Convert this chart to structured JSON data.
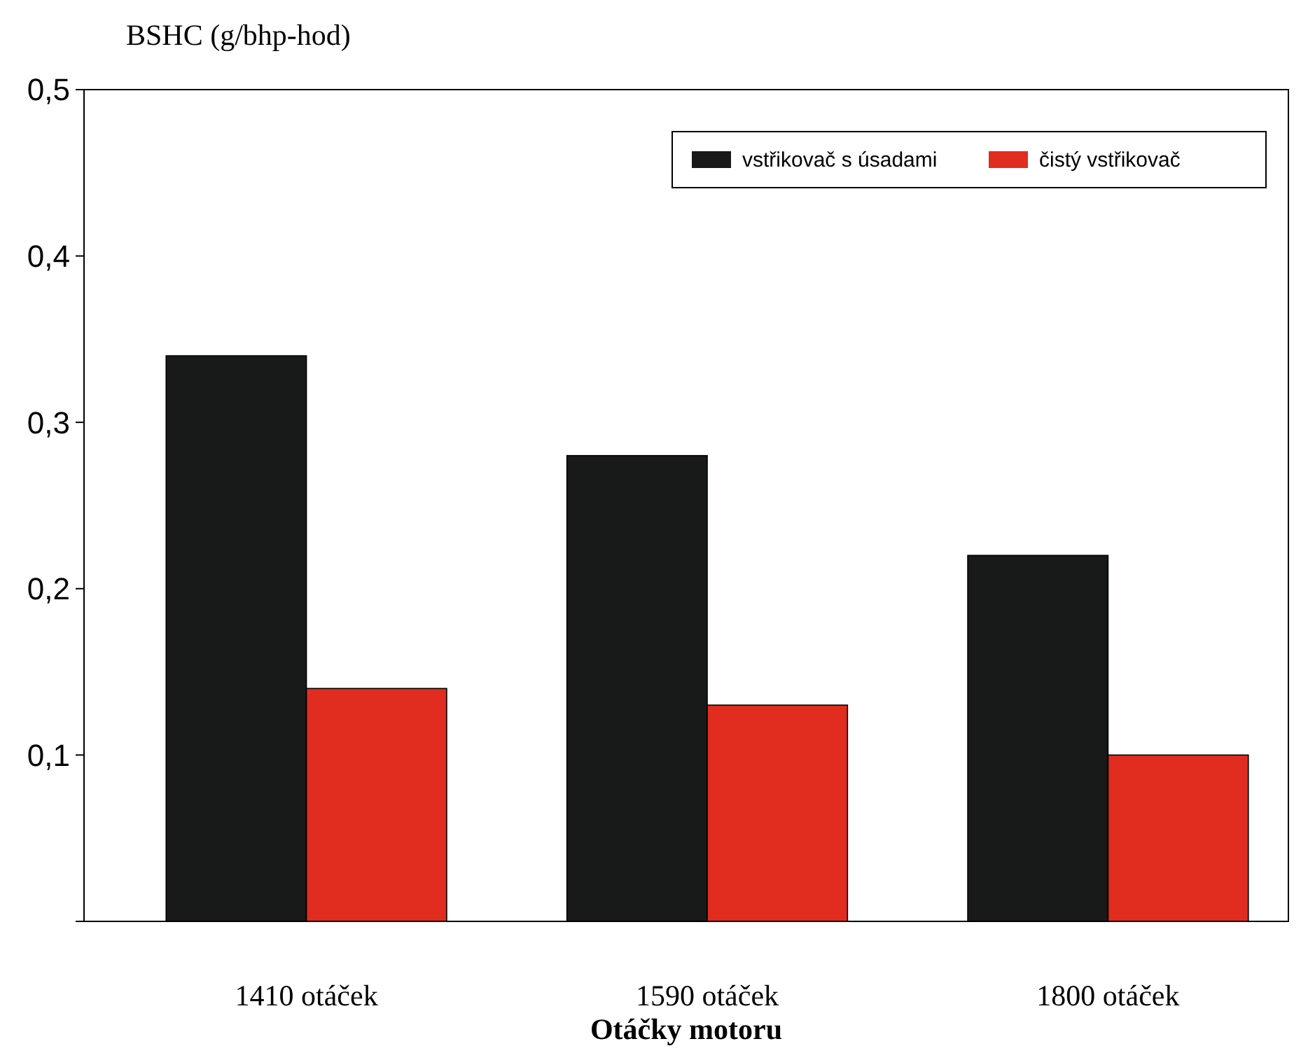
{
  "chart_data": {
    "type": "bar",
    "xlabel": "Otáčky motoru",
    "ylabel": "BSHC (g/bhp-hod)",
    "categories": [
      "1410 otáček",
      "1590 otáček",
      "1800 otáček"
    ],
    "series": [
      {
        "name": "vstřikovač s úsadami",
        "color": "#181a19",
        "values": [
          0.34,
          0.28,
          0.22
        ]
      },
      {
        "name": "čistý vstřikovač",
        "color": "#e02d1f",
        "values": [
          0.14,
          0.13,
          0.1
        ]
      }
    ],
    "ylim": [
      0,
      0.5
    ],
    "yticks": [
      {
        "value": 0,
        "label": null
      },
      {
        "value": 0.1,
        "label": "0,1"
      },
      {
        "value": 0.2,
        "label": "0,2"
      },
      {
        "value": 0.3,
        "label": "0,3"
      },
      {
        "value": 0.4,
        "label": "0,4"
      },
      {
        "value": 0.5,
        "label": "0,5"
      }
    ],
    "grid": false,
    "legend": "top right"
  }
}
